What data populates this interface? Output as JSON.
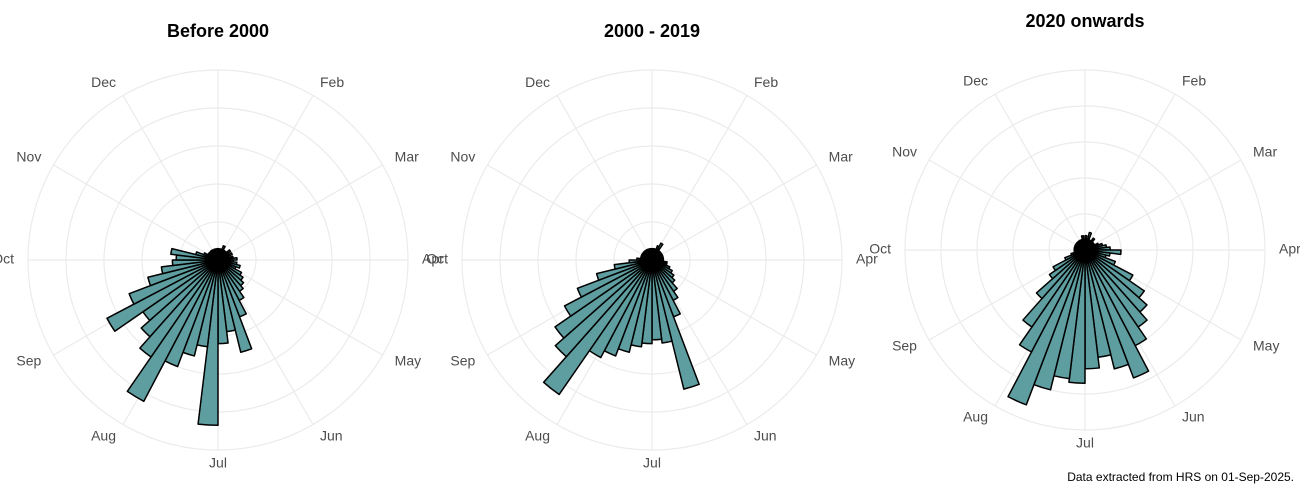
{
  "caption": "Data extracted from HRS on 01-Sep-2025.",
  "chart_data": [
    {
      "type": "polar_bar",
      "title": "Before 2000",
      "color": "#5f9ea0",
      "grid": true,
      "theta_labels": [
        null,
        "Feb",
        "Mar",
        "Apr",
        "May",
        "Jun",
        "Jul",
        "Aug",
        "Sep",
        "Oct",
        "Nov",
        "Dec"
      ],
      "rlim": [
        0,
        5
      ],
      "rticks": [
        1,
        2,
        3,
        4,
        5
      ],
      "values": [
        0.3,
        0.2,
        0.3,
        0.4,
        0.3,
        0.2,
        0.3,
        0.4,
        0.3,
        0.4,
        0.3,
        0.4,
        0.5,
        0.4,
        0.5,
        0.6,
        0.5,
        0.7,
        0.8,
        0.9,
        1.0,
        1.2,
        1.6,
        2.5,
        1.9,
        2.2,
        4.35,
        2.3,
        2.6,
        3.0,
        4.2,
        3.1,
        2.7,
        2.4,
        3.3,
        2.5,
        1.9,
        1.5,
        1.2,
        1.1,
        1.25,
        0.6,
        0.4,
        0.3,
        0.3,
        0.2,
        0.3,
        0.3,
        0.2,
        0.3,
        0.2,
        0.3
      ]
    },
    {
      "type": "polar_bar",
      "title": "2000 - 2019",
      "color": "#5f9ea0",
      "grid": true,
      "theta_labels": [
        null,
        "Feb",
        "Mar",
        "Apr",
        "May",
        "Jun",
        "Jul",
        "Aug",
        "Sep",
        "Oct",
        "Nov",
        "Dec"
      ],
      "rlim": [
        0,
        5
      ],
      "rticks": [
        1,
        2,
        3,
        4,
        5
      ],
      "values": [
        0.3,
        0.3,
        0.3,
        0.4,
        0.5,
        0.3,
        0.3,
        0.3,
        0.3,
        0.3,
        0.3,
        0.3,
        0.3,
        0.3,
        0.4,
        0.4,
        0.5,
        0.6,
        0.7,
        0.8,
        1.0,
        1.2,
        1.6,
        3.5,
        2.2,
        2.1,
        2.2,
        2.3,
        2.5,
        2.7,
        2.9,
        4.3,
        3.4,
        3.1,
        2.6,
        2.1,
        1.5,
        1.0,
        0.6,
        0.4,
        0.3,
        0.3,
        0.3,
        0.3,
        0.3,
        0.3,
        0.3,
        0.3,
        0.3,
        0.3,
        0.3,
        0.3
      ]
    },
    {
      "type": "polar_bar",
      "title": "2020 onwards",
      "color": "#5f9ea0",
      "grid": true,
      "theta_labels": [
        null,
        "Feb",
        "Mar",
        "Apr",
        "May",
        "Jun",
        "Jul",
        "Aug",
        "Sep",
        "Oct",
        "Nov",
        "Dec"
      ],
      "rlim": [
        0,
        5
      ],
      "rticks": [
        1,
        2,
        3,
        4,
        5
      ],
      "values": [
        0.4,
        0.3,
        0.5,
        0.3,
        0.3,
        0.4,
        0.3,
        0.3,
        0.3,
        0.4,
        0.5,
        0.6,
        0.7,
        1.0,
        0.7,
        0.6,
        0.9,
        1.5,
        2.0,
        2.3,
        2.6,
        3.0,
        3.8,
        3.4,
        3.0,
        3.3,
        3.7,
        3.6,
        4.0,
        4.6,
        3.2,
        2.6,
        1.8,
        1.2,
        1.0,
        0.6,
        0.4,
        0.3,
        0.3,
        0.3,
        0.3,
        0.3,
        0.3,
        0.3,
        0.3,
        0.3,
        0.3,
        0.3,
        0.3,
        0.3,
        0.4,
        0.3
      ]
    }
  ]
}
